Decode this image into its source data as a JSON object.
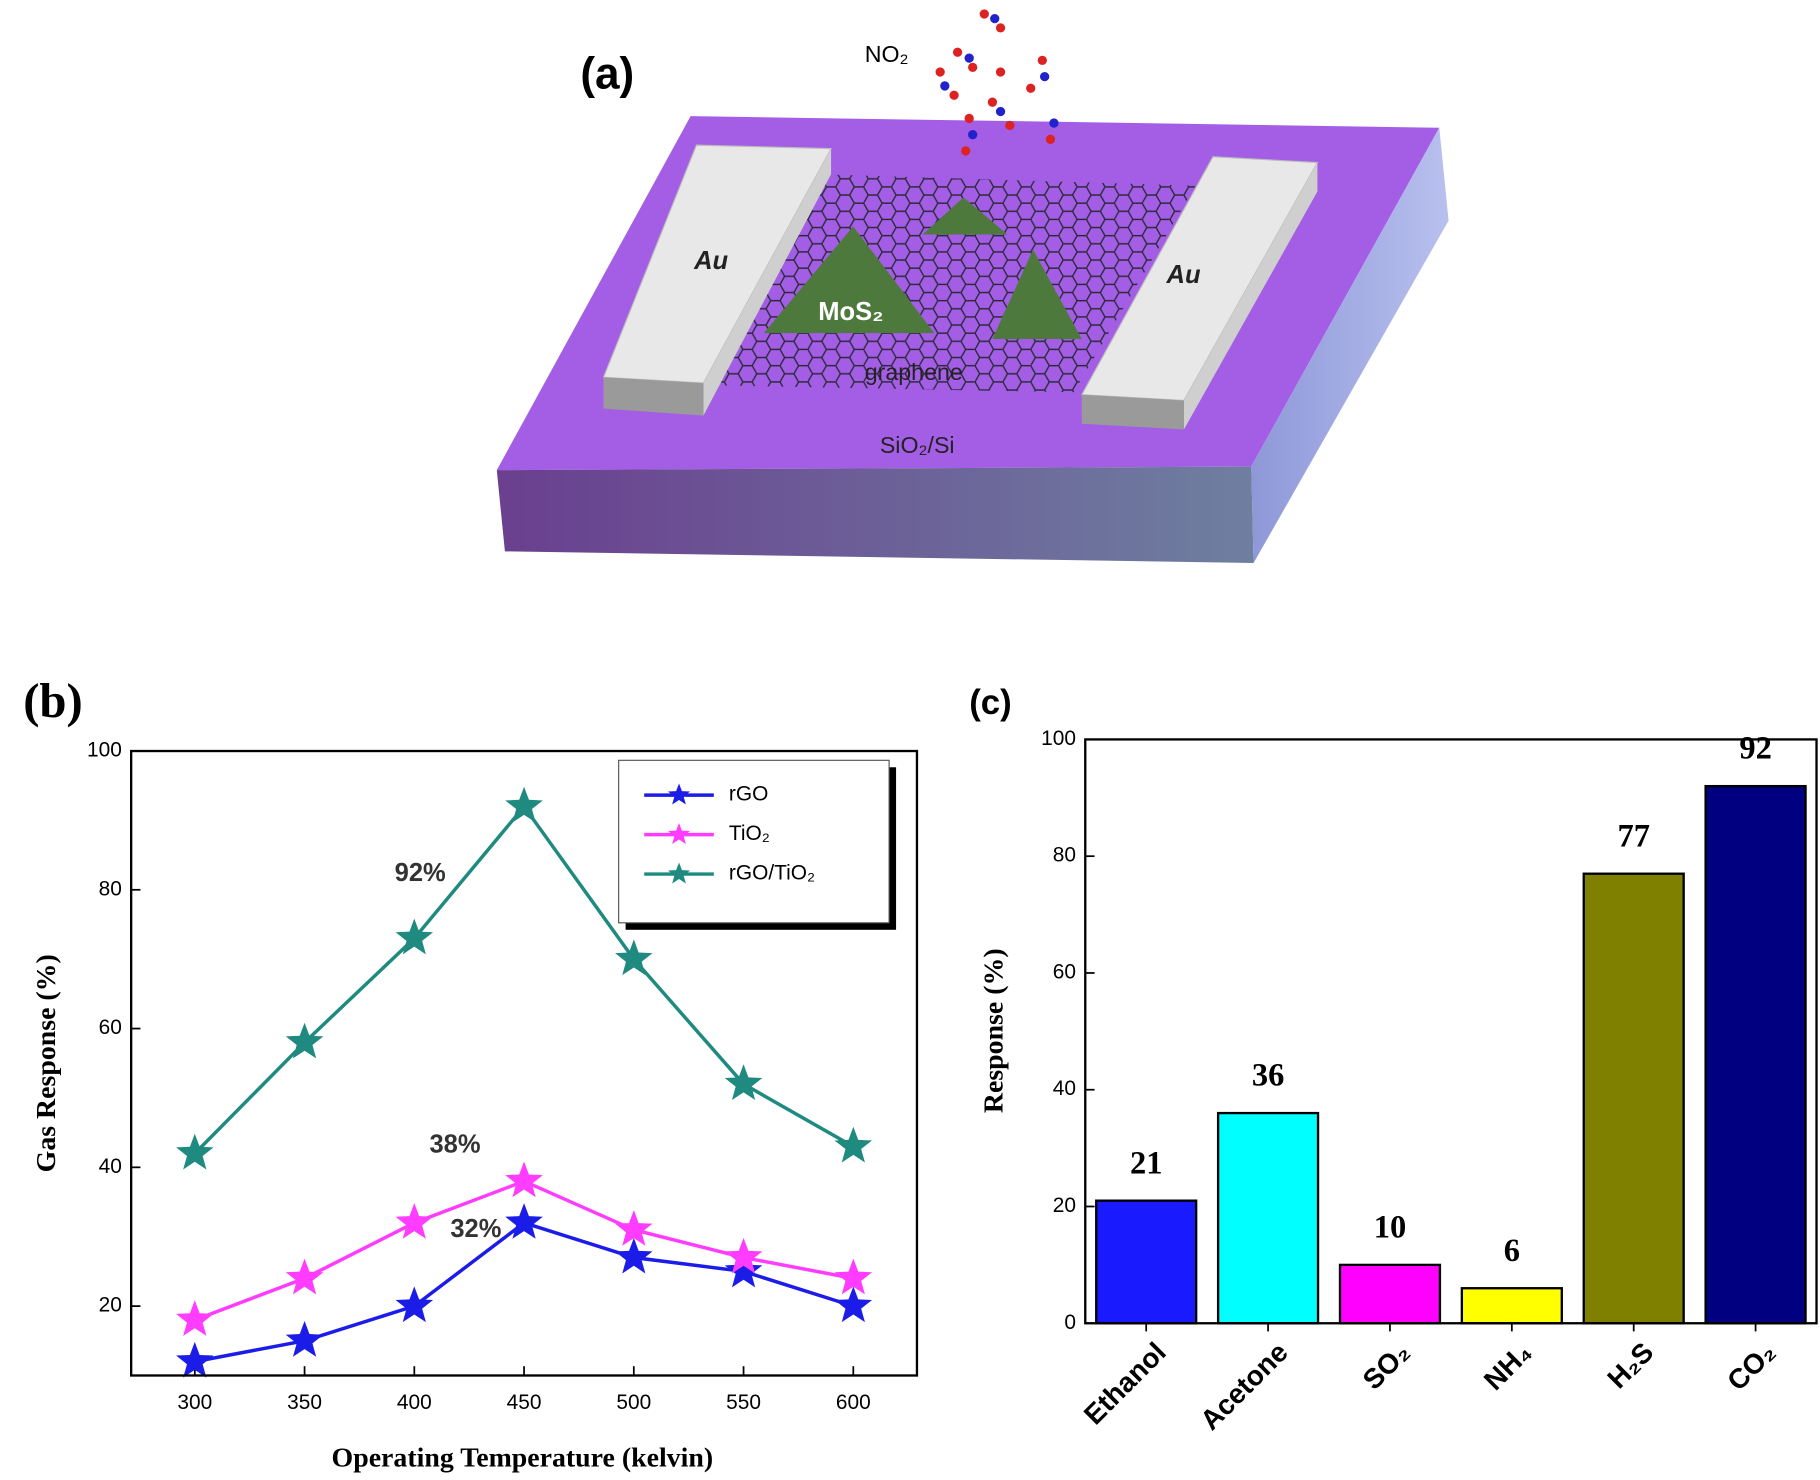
{
  "diagram": {
    "label": "(a)",
    "gas": "NO₂",
    "electrodes": [
      "Au",
      "Au"
    ],
    "crystal": "MoS₂",
    "sheet": "graphene",
    "substrate": "SiO₂/Si"
  },
  "chart_data": [
    {
      "type": "line",
      "panel": "(b)",
      "xlabel": "Operating Temperature (kelvin)",
      "ylabel": "Gas Response (%)",
      "x": [
        300,
        350,
        400,
        450,
        500,
        550,
        600
      ],
      "series": [
        {
          "name": "rGO",
          "color": "#1c1ce8",
          "values": [
            12,
            15,
            20,
            32,
            27,
            25,
            20
          ]
        },
        {
          "name": "TiO₂",
          "color": "#ff3cff",
          "values": [
            18,
            24,
            32,
            38,
            31,
            27,
            24
          ]
        },
        {
          "name": "rGO/TiO₂",
          "color": "#1f8a80",
          "values": [
            42,
            58,
            73,
            92,
            70,
            52,
            43
          ]
        }
      ],
      "annotations": [
        "92%",
        "38%",
        "32%"
      ],
      "xlim": [
        271,
        629
      ],
      "xticks": [
        300,
        350,
        400,
        450,
        500,
        550,
        600
      ],
      "ylim": [
        10,
        100
      ],
      "yticks": [
        20,
        40,
        60,
        80,
        100
      ],
      "legend": "upper right"
    },
    {
      "type": "bar",
      "panel": "(c)",
      "ylabel": "Response (%)",
      "categories": [
        "Ethanol",
        "Acetone",
        "SO₂",
        "NH₄",
        "H₂S",
        "CO₂"
      ],
      "values": [
        21,
        36,
        10,
        6,
        77,
        92
      ],
      "colors": [
        "#1a1aff",
        "#00ffff",
        "#ff00ff",
        "#ffff00",
        "#808000",
        "#000080"
      ],
      "ylim": [
        0,
        100
      ],
      "yticks": [
        0,
        20,
        40,
        60,
        80,
        100
      ]
    }
  ]
}
